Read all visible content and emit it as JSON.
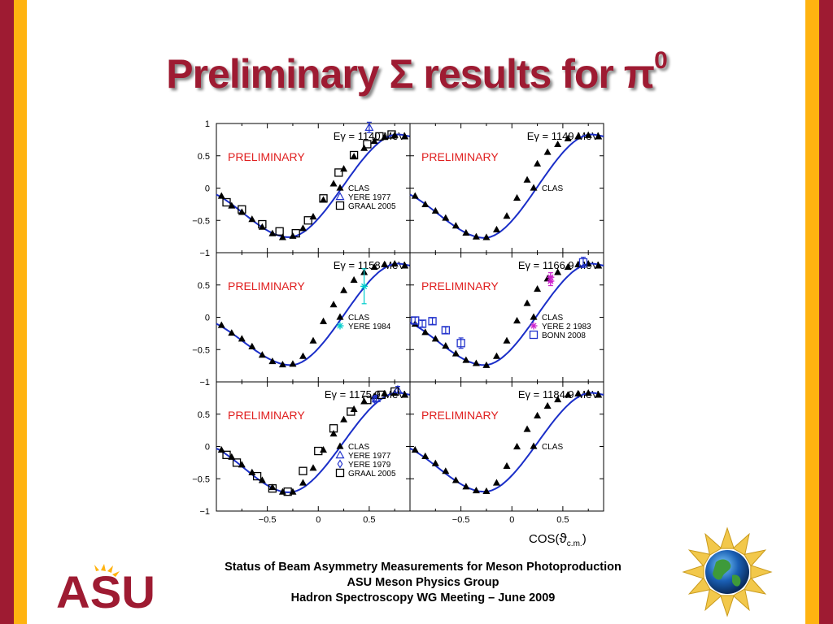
{
  "slide": {
    "title_main": "Preliminary Σ results for π",
    "title_sup": "0",
    "colors": {
      "maroon": "#9e1b32",
      "gold": "#ffb310",
      "fit": "#1a2ec8"
    },
    "footer": {
      "line1": "Status of Beam Asymmetry Measurements for Meson Photoproduction",
      "line2": "ASU Meson Physics Group",
      "line3": "Hadron Spectroscopy WG Meeting – June 2009"
    },
    "logos": {
      "left": "ASU",
      "right": "globe-emblem-icon"
    }
  },
  "chart_data": {
    "type": "scatter",
    "layout": "3x2 grid of panels",
    "xlabel": "COS(ϑc.m.)",
    "xlim": [
      -1,
      0.9
    ],
    "ylim": [
      -1,
      1
    ],
    "yticks": [
      1,
      0.5,
      0,
      -0.5,
      -1
    ],
    "yticklabels": [
      "1",
      "0.5",
      "0",
      "−0.5",
      "−1"
    ],
    "xticks": [
      -0.5,
      0,
      0.5
    ],
    "xticklabels": [
      "−0.5",
      "0",
      "0.5"
    ],
    "watermark": "PRELIMINARY",
    "panels": [
      {
        "label": "Eγ = 1140 MeV",
        "fit_min": [
          -0.29,
          -0.76
        ],
        "series": [
          {
            "name": "CLAS",
            "marker": "triangle",
            "color": "#000000",
            "x": [
              -0.95,
              -0.85,
              -0.75,
              -0.65,
              -0.55,
              -0.45,
              -0.35,
              -0.25,
              -0.15,
              -0.05,
              0.05,
              0.15,
              0.25,
              0.35,
              0.45,
              0.55,
              0.65,
              0.75,
              0.85
            ],
            "y": [
              -0.12,
              -0.27,
              -0.37,
              -0.48,
              -0.6,
              -0.7,
              -0.76,
              -0.74,
              -0.62,
              -0.44,
              -0.18,
              0.07,
              0.3,
              0.49,
              0.62,
              0.73,
              0.79,
              0.82,
              0.8
            ]
          },
          {
            "name": "YERE 1977",
            "marker": "triangle-open",
            "color": "#2233cc",
            "x": [
              0.5
            ],
            "y": [
              0.94
            ],
            "err": [
              0.08
            ]
          },
          {
            "name": "GRAAL 2005",
            "marker": "square-open",
            "color": "#000000",
            "x": [
              -0.9,
              -0.75,
              -0.55,
              -0.38,
              -0.22,
              -0.1,
              0.05,
              0.2,
              0.35,
              0.48,
              0.6,
              0.72
            ],
            "y": [
              -0.22,
              -0.33,
              -0.56,
              -0.67,
              -0.7,
              -0.5,
              -0.16,
              0.24,
              0.51,
              0.68,
              0.8,
              0.83
            ]
          }
        ]
      },
      {
        "label": "Eγ = 1149 MeV",
        "fit_min": [
          -0.27,
          -0.77
        ],
        "series": [
          {
            "name": "CLAS",
            "marker": "triangle",
            "color": "#000000",
            "x": [
              -0.95,
              -0.85,
              -0.75,
              -0.65,
              -0.55,
              -0.45,
              -0.35,
              -0.25,
              -0.15,
              -0.05,
              0.05,
              0.15,
              0.25,
              0.35,
              0.45,
              0.55,
              0.65,
              0.75,
              0.85
            ],
            "y": [
              -0.12,
              -0.25,
              -0.35,
              -0.46,
              -0.58,
              -0.69,
              -0.75,
              -0.76,
              -0.64,
              -0.43,
              -0.15,
              0.13,
              0.38,
              0.56,
              0.68,
              0.77,
              0.8,
              0.82,
              0.8
            ]
          }
        ]
      },
      {
        "label": "Eγ = 1158 MeV",
        "fit_min": [
          -0.27,
          -0.74
        ],
        "series": [
          {
            "name": "CLAS",
            "marker": "triangle",
            "color": "#000000",
            "x": [
              -0.95,
              -0.85,
              -0.75,
              -0.65,
              -0.55,
              -0.45,
              -0.35,
              -0.25,
              -0.15,
              -0.05,
              0.05,
              0.15,
              0.25,
              0.35,
              0.45,
              0.55,
              0.65,
              0.75,
              0.85
            ],
            "y": [
              -0.12,
              -0.24,
              -0.33,
              -0.45,
              -0.58,
              -0.68,
              -0.73,
              -0.72,
              -0.6,
              -0.36,
              -0.06,
              0.2,
              0.42,
              0.58,
              0.7,
              0.78,
              0.82,
              0.83,
              0.8
            ]
          },
          {
            "name": "YERE 1984",
            "marker": "star",
            "color": "#00cccc",
            "x": [
              0.45
            ],
            "y": [
              0.48
            ],
            "err": [
              0.27
            ]
          }
        ]
      },
      {
        "label": "Eγ = 1166.9 MeV",
        "fit_min": [
          -0.27,
          -0.74
        ],
        "series": [
          {
            "name": "CLAS",
            "marker": "triangle",
            "color": "#000000",
            "x": [
              -0.95,
              -0.85,
              -0.75,
              -0.65,
              -0.55,
              -0.45,
              -0.35,
              -0.25,
              -0.15,
              -0.05,
              0.05,
              0.15,
              0.25,
              0.35,
              0.45,
              0.55,
              0.65,
              0.75,
              0.85
            ],
            "y": [
              -0.1,
              -0.23,
              -0.33,
              -0.44,
              -0.56,
              -0.66,
              -0.71,
              -0.74,
              -0.6,
              -0.36,
              -0.05,
              0.22,
              0.44,
              0.6,
              0.7,
              0.78,
              0.82,
              0.83,
              0.8
            ]
          },
          {
            "name": "YERE 2 1983",
            "marker": "star",
            "color": "#cc22cc",
            "x": [
              0.38,
              0.38
            ],
            "y": [
              0.62,
              0.56
            ],
            "err": [
              0.07,
              0.07
            ]
          },
          {
            "name": "BONN 2008",
            "marker": "square-open",
            "color": "#2233cc",
            "x": [
              -0.95,
              -0.88,
              -0.78,
              -0.65,
              -0.5,
              0.7
            ],
            "y": [
              -0.05,
              -0.1,
              -0.06,
              -0.2,
              -0.4,
              0.85
            ],
            "err": [
              0.05,
              0.05,
              0.05,
              0.05,
              0.08,
              0.08
            ]
          }
        ]
      },
      {
        "label": "Eγ = 1175.9 MeV",
        "fit_min": [
          -0.29,
          -0.71
        ],
        "series": [
          {
            "name": "CLAS",
            "marker": "triangle",
            "color": "#000000",
            "x": [
              -0.95,
              -0.85,
              -0.75,
              -0.65,
              -0.55,
              -0.45,
              -0.35,
              -0.25,
              -0.15,
              -0.05,
              0.05,
              0.15,
              0.25,
              0.35,
              0.45,
              0.55,
              0.65,
              0.75,
              0.85
            ],
            "y": [
              -0.05,
              -0.16,
              -0.28,
              -0.4,
              -0.52,
              -0.63,
              -0.7,
              -0.7,
              -0.56,
              -0.33,
              -0.05,
              0.2,
              0.42,
              0.58,
              0.7,
              0.78,
              0.82,
              0.83,
              0.8
            ]
          },
          {
            "name": "YERE 1977",
            "marker": "triangle-open",
            "color": "#2233cc",
            "x": [
              0.57,
              0.78
            ],
            "y": [
              0.74,
              0.88
            ],
            "err": [
              0.05,
              0.05
            ]
          },
          {
            "name": "YERE 1979",
            "marker": "diamond",
            "color": "#2233cc",
            "x": [
              0.55
            ],
            "y": [
              0.73
            ],
            "err": [
              0.04
            ]
          },
          {
            "name": "GRAAL 2005",
            "marker": "square-open",
            "color": "#000000",
            "x": [
              -0.9,
              -0.8,
              -0.6,
              -0.45,
              -0.3,
              -0.15,
              0,
              0.15,
              0.32,
              0.48,
              0.62,
              0.75
            ],
            "y": [
              -0.13,
              -0.25,
              -0.46,
              -0.65,
              -0.7,
              -0.38,
              -0.07,
              0.28,
              0.54,
              0.72,
              0.8,
              0.85
            ]
          }
        ]
      },
      {
        "label": "Eγ = 1184.9 MeV",
        "fit_min": [
          -0.27,
          -0.7
        ],
        "series": [
          {
            "name": "CLAS",
            "marker": "triangle",
            "color": "#000000",
            "x": [
              -0.95,
              -0.85,
              -0.75,
              -0.65,
              -0.55,
              -0.45,
              -0.35,
              -0.25,
              -0.15,
              -0.05,
              0.05,
              0.15,
              0.25,
              0.35,
              0.45,
              0.55,
              0.65,
              0.75,
              0.85
            ],
            "y": [
              -0.05,
              -0.15,
              -0.26,
              -0.38,
              -0.52,
              -0.62,
              -0.68,
              -0.69,
              -0.56,
              -0.3,
              0.0,
              0.27,
              0.48,
              0.63,
              0.73,
              0.8,
              0.82,
              0.83,
              0.8
            ]
          }
        ]
      }
    ]
  }
}
